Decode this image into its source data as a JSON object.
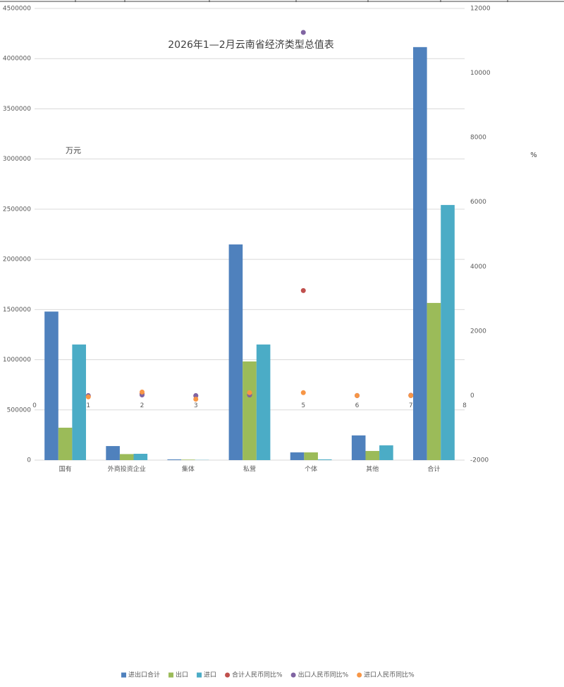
{
  "chart_data": {
    "type": "bar",
    "title": "2026年1—2月云南省经济类型总值表",
    "y_label": "万元",
    "y2_label": "%",
    "categories": [
      "国有",
      "外商投资企业",
      "集体",
      "私营",
      "个体",
      "其他",
      "合计"
    ],
    "x2": [
      1,
      2,
      3,
      4,
      5,
      6,
      7
    ],
    "x2lim": [
      0,
      8
    ],
    "x2ticks": [
      0,
      1,
      2,
      3,
      4,
      5,
      6,
      7,
      8
    ],
    "ylim": [
      0,
      4500000
    ],
    "yticks": [
      0,
      500000,
      1000000,
      1500000,
      2000000,
      2500000,
      3000000,
      3500000,
      4000000,
      4500000
    ],
    "y2lim": [
      -2000,
      12000
    ],
    "y2ticks": [
      -2000,
      0,
      2000,
      4000,
      6000,
      8000,
      10000,
      12000
    ],
    "grid": true,
    "legend": "bottom",
    "series": [
      {
        "name": "进出口合计",
        "type": "bar",
        "color": "#4f81bd",
        "values": [
          1480000,
          140000,
          7000,
          2149000,
          77000,
          246000,
          4115000
        ]
      },
      {
        "name": "出口",
        "type": "bar",
        "color": "#9bbb59",
        "values": [
          323000,
          60000,
          5000,
          983000,
          77000,
          91000,
          1566000
        ]
      },
      {
        "name": "进口",
        "type": "bar",
        "color": "#4bacc6",
        "values": [
          1152000,
          63000,
          2000,
          1152000,
          7000,
          147000,
          2542000
        ]
      },
      {
        "name": "合计人民币同比%",
        "type": "scatter",
        "axis": "y2",
        "color": "#c0504d",
        "values": [
          -20,
          60,
          -10,
          20,
          3256,
          0,
          10
        ]
      },
      {
        "name": "出口人民币同比%",
        "type": "scatter",
        "axis": "y2",
        "color": "#8064a2",
        "values": [
          0,
          20,
          0,
          20,
          11257,
          0,
          0
        ]
      },
      {
        "name": "进口人民币同比%",
        "type": "scatter",
        "axis": "y2",
        "color": "#f79646",
        "values": [
          -40,
          110,
          -110,
          90,
          90,
          0,
          0
        ]
      }
    ]
  }
}
